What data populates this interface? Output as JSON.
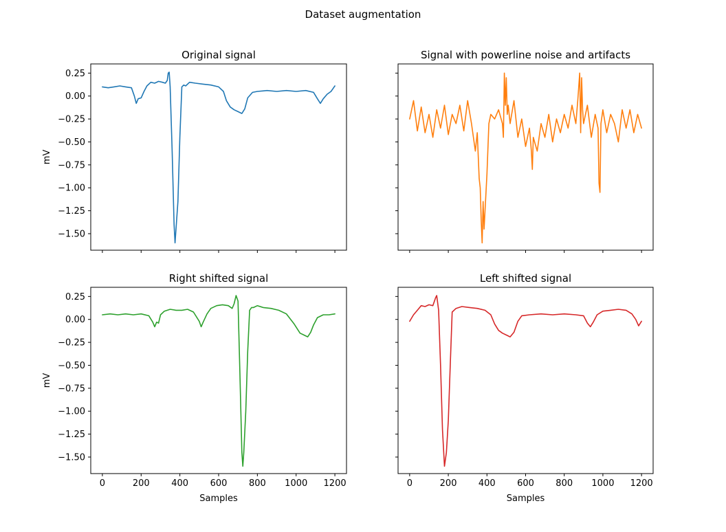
{
  "figure_title": "Dataset augmentation",
  "chart_data": [
    {
      "id": "original",
      "type": "line",
      "title": "Original signal",
      "xlabel": "",
      "ylabel": "mV",
      "color": "#1f77b4",
      "xlim": [
        -60,
        1260
      ],
      "ylim": [
        -1.68,
        0.35
      ],
      "xticks": [
        0,
        200,
        400,
        600,
        800,
        1000,
        1200
      ],
      "yticks": [
        0.25,
        0.0,
        -0.25,
        -0.5,
        -0.75,
        -1.0,
        -1.25,
        -1.5
      ],
      "ytick_labels": [
        "0.25",
        "0.00",
        "−0.25",
        "−0.50",
        "−0.75",
        "−1.00",
        "−1.25",
        "−1.50"
      ],
      "x": [
        0,
        30,
        60,
        90,
        120,
        150,
        165,
        175,
        185,
        200,
        215,
        230,
        250,
        270,
        290,
        310,
        325,
        335,
        340,
        345,
        350,
        360,
        370,
        375,
        380,
        390,
        400,
        410,
        420,
        430,
        450,
        480,
        520,
        560,
        600,
        625,
        640,
        660,
        680,
        700,
        720,
        735,
        750,
        775,
        800,
        850,
        900,
        950,
        1000,
        1050,
        1090,
        1110,
        1125,
        1140,
        1160,
        1180,
        1200
      ],
      "y": [
        0.1,
        0.09,
        0.1,
        0.11,
        0.1,
        0.09,
        0.0,
        -0.08,
        -0.03,
        -0.02,
        0.05,
        0.11,
        0.15,
        0.14,
        0.16,
        0.15,
        0.14,
        0.17,
        0.25,
        0.26,
        0.1,
        -0.6,
        -1.4,
        -1.6,
        -1.45,
        -1.15,
        -0.45,
        0.1,
        0.12,
        0.11,
        0.15,
        0.14,
        0.13,
        0.12,
        0.1,
        0.05,
        -0.05,
        -0.12,
        -0.15,
        -0.17,
        -0.19,
        -0.14,
        -0.02,
        0.04,
        0.05,
        0.06,
        0.05,
        0.06,
        0.05,
        0.06,
        0.04,
        -0.03,
        -0.08,
        -0.03,
        0.02,
        0.05,
        0.11
      ]
    },
    {
      "id": "noisy",
      "type": "line",
      "title": "Signal with powerline noise and artifacts",
      "xlabel": "",
      "ylabel": "",
      "color": "#ff7f0e",
      "xlim": [
        -60,
        1260
      ],
      "ylim": [
        -1.68,
        0.35
      ],
      "xticks": [
        0,
        200,
        400,
        600,
        800,
        1000,
        1200
      ],
      "yticks": [
        0.25,
        0.0,
        -0.25,
        -0.5,
        -0.75,
        -1.0,
        -1.25,
        -1.5
      ],
      "x": [
        0,
        20,
        40,
        60,
        80,
        100,
        120,
        140,
        160,
        180,
        200,
        220,
        240,
        260,
        280,
        300,
        320,
        340,
        350,
        360,
        365,
        370,
        375,
        380,
        385,
        390,
        400,
        410,
        420,
        440,
        460,
        480,
        485,
        490,
        495,
        500,
        505,
        510,
        520,
        540,
        560,
        580,
        600,
        620,
        630,
        635,
        640,
        660,
        680,
        700,
        720,
        740,
        760,
        780,
        800,
        820,
        840,
        860,
        870,
        880,
        885,
        890,
        895,
        900,
        920,
        940,
        960,
        975,
        980,
        985,
        990,
        1000,
        1020,
        1040,
        1060,
        1080,
        1100,
        1120,
        1140,
        1160,
        1180,
        1200
      ],
      "y": [
        -0.25,
        -0.05,
        -0.38,
        -0.12,
        -0.4,
        -0.2,
        -0.45,
        -0.15,
        -0.35,
        -0.1,
        -0.42,
        -0.2,
        -0.3,
        -0.1,
        -0.38,
        -0.05,
        -0.3,
        -0.6,
        -0.4,
        -0.9,
        -1.0,
        -1.35,
        -1.6,
        -1.15,
        -1.45,
        -1.25,
        -0.85,
        -0.3,
        -0.2,
        -0.25,
        -0.15,
        -0.3,
        -0.45,
        0.25,
        -0.1,
        0.2,
        -0.2,
        -0.1,
        -0.3,
        -0.05,
        -0.45,
        -0.25,
        -0.55,
        -0.35,
        -0.6,
        -0.8,
        -0.45,
        -0.6,
        -0.3,
        -0.45,
        -0.2,
        -0.5,
        -0.25,
        -0.4,
        -0.2,
        -0.35,
        -0.1,
        -0.3,
        -0.05,
        0.25,
        -0.4,
        0.2,
        -0.15,
        -0.3,
        -0.1,
        -0.45,
        -0.2,
        -0.35,
        -0.95,
        -1.05,
        -0.3,
        -0.15,
        -0.4,
        -0.2,
        -0.3,
        -0.5,
        -0.15,
        -0.35,
        -0.15,
        -0.4,
        -0.2,
        -0.35
      ]
    },
    {
      "id": "right_shifted",
      "type": "line",
      "title": "Right shifted signal",
      "xlabel": "Samples",
      "ylabel": "mV",
      "color": "#2ca02c",
      "xlim": [
        -60,
        1260
      ],
      "ylim": [
        -1.68,
        0.35
      ],
      "xticks": [
        0,
        200,
        400,
        600,
        800,
        1000,
        1200
      ],
      "xtick_labels": [
        "0",
        "200",
        "400",
        "600",
        "800",
        "1000",
        "1200"
      ],
      "yticks": [
        0.25,
        0.0,
        -0.25,
        -0.5,
        -0.75,
        -1.0,
        -1.25,
        -1.5
      ],
      "ytick_labels": [
        "0.25",
        "0.00",
        "−0.25",
        "−0.50",
        "−0.75",
        "−1.00",
        "−1.25",
        "−1.50"
      ],
      "x": [
        0,
        40,
        80,
        120,
        160,
        200,
        240,
        260,
        270,
        280,
        290,
        300,
        320,
        350,
        380,
        410,
        440,
        470,
        500,
        510,
        520,
        540,
        560,
        590,
        620,
        650,
        670,
        680,
        690,
        700,
        710,
        720,
        725,
        730,
        740,
        750,
        760,
        770,
        780,
        800,
        830,
        870,
        910,
        950,
        990,
        1020,
        1040,
        1060,
        1075,
        1090,
        1110,
        1140,
        1170,
        1200
      ],
      "y": [
        0.05,
        0.06,
        0.05,
        0.06,
        0.05,
        0.06,
        0.04,
        -0.03,
        -0.08,
        -0.03,
        -0.04,
        0.05,
        0.09,
        0.11,
        0.1,
        0.1,
        0.11,
        0.08,
        -0.02,
        -0.08,
        -0.03,
        0.06,
        0.12,
        0.15,
        0.16,
        0.15,
        0.12,
        0.17,
        0.26,
        0.2,
        -0.6,
        -1.45,
        -1.6,
        -1.45,
        -1.0,
        -0.35,
        0.1,
        0.13,
        0.13,
        0.15,
        0.13,
        0.12,
        0.1,
        0.06,
        -0.05,
        -0.15,
        -0.17,
        -0.19,
        -0.14,
        -0.06,
        0.02,
        0.05,
        0.05,
        0.06
      ]
    },
    {
      "id": "left_shifted",
      "type": "line",
      "title": "Left shifted signal",
      "xlabel": "Samples",
      "ylabel": "",
      "color": "#d62728",
      "xlim": [
        -60,
        1260
      ],
      "ylim": [
        -1.68,
        0.35
      ],
      "xticks": [
        0,
        200,
        400,
        600,
        800,
        1000,
        1200
      ],
      "xtick_labels": [
        "0",
        "200",
        "400",
        "600",
        "800",
        "1000",
        "1200"
      ],
      "yticks": [
        0.25,
        0.0,
        -0.25,
        -0.5,
        -0.75,
        -1.0,
        -1.25,
        -1.5
      ],
      "x": [
        0,
        20,
        40,
        60,
        80,
        100,
        120,
        135,
        140,
        150,
        160,
        170,
        180,
        190,
        200,
        210,
        220,
        240,
        270,
        310,
        350,
        390,
        420,
        440,
        460,
        480,
        500,
        520,
        540,
        560,
        580,
        620,
        680,
        740,
        800,
        860,
        900,
        920,
        935,
        950,
        970,
        1000,
        1040,
        1080,
        1120,
        1150,
        1170,
        1185,
        1200
      ],
      "y": [
        -0.02,
        0.05,
        0.1,
        0.15,
        0.14,
        0.16,
        0.15,
        0.24,
        0.26,
        0.1,
        -0.5,
        -1.2,
        -1.6,
        -1.45,
        -1.1,
        -0.5,
        0.08,
        0.12,
        0.14,
        0.13,
        0.12,
        0.1,
        0.05,
        -0.05,
        -0.12,
        -0.15,
        -0.17,
        -0.19,
        -0.14,
        -0.02,
        0.04,
        0.05,
        0.06,
        0.05,
        0.06,
        0.05,
        0.04,
        -0.04,
        -0.08,
        -0.03,
        0.05,
        0.09,
        0.1,
        0.11,
        0.1,
        0.06,
        0.0,
        -0.07,
        -0.02
      ]
    }
  ]
}
